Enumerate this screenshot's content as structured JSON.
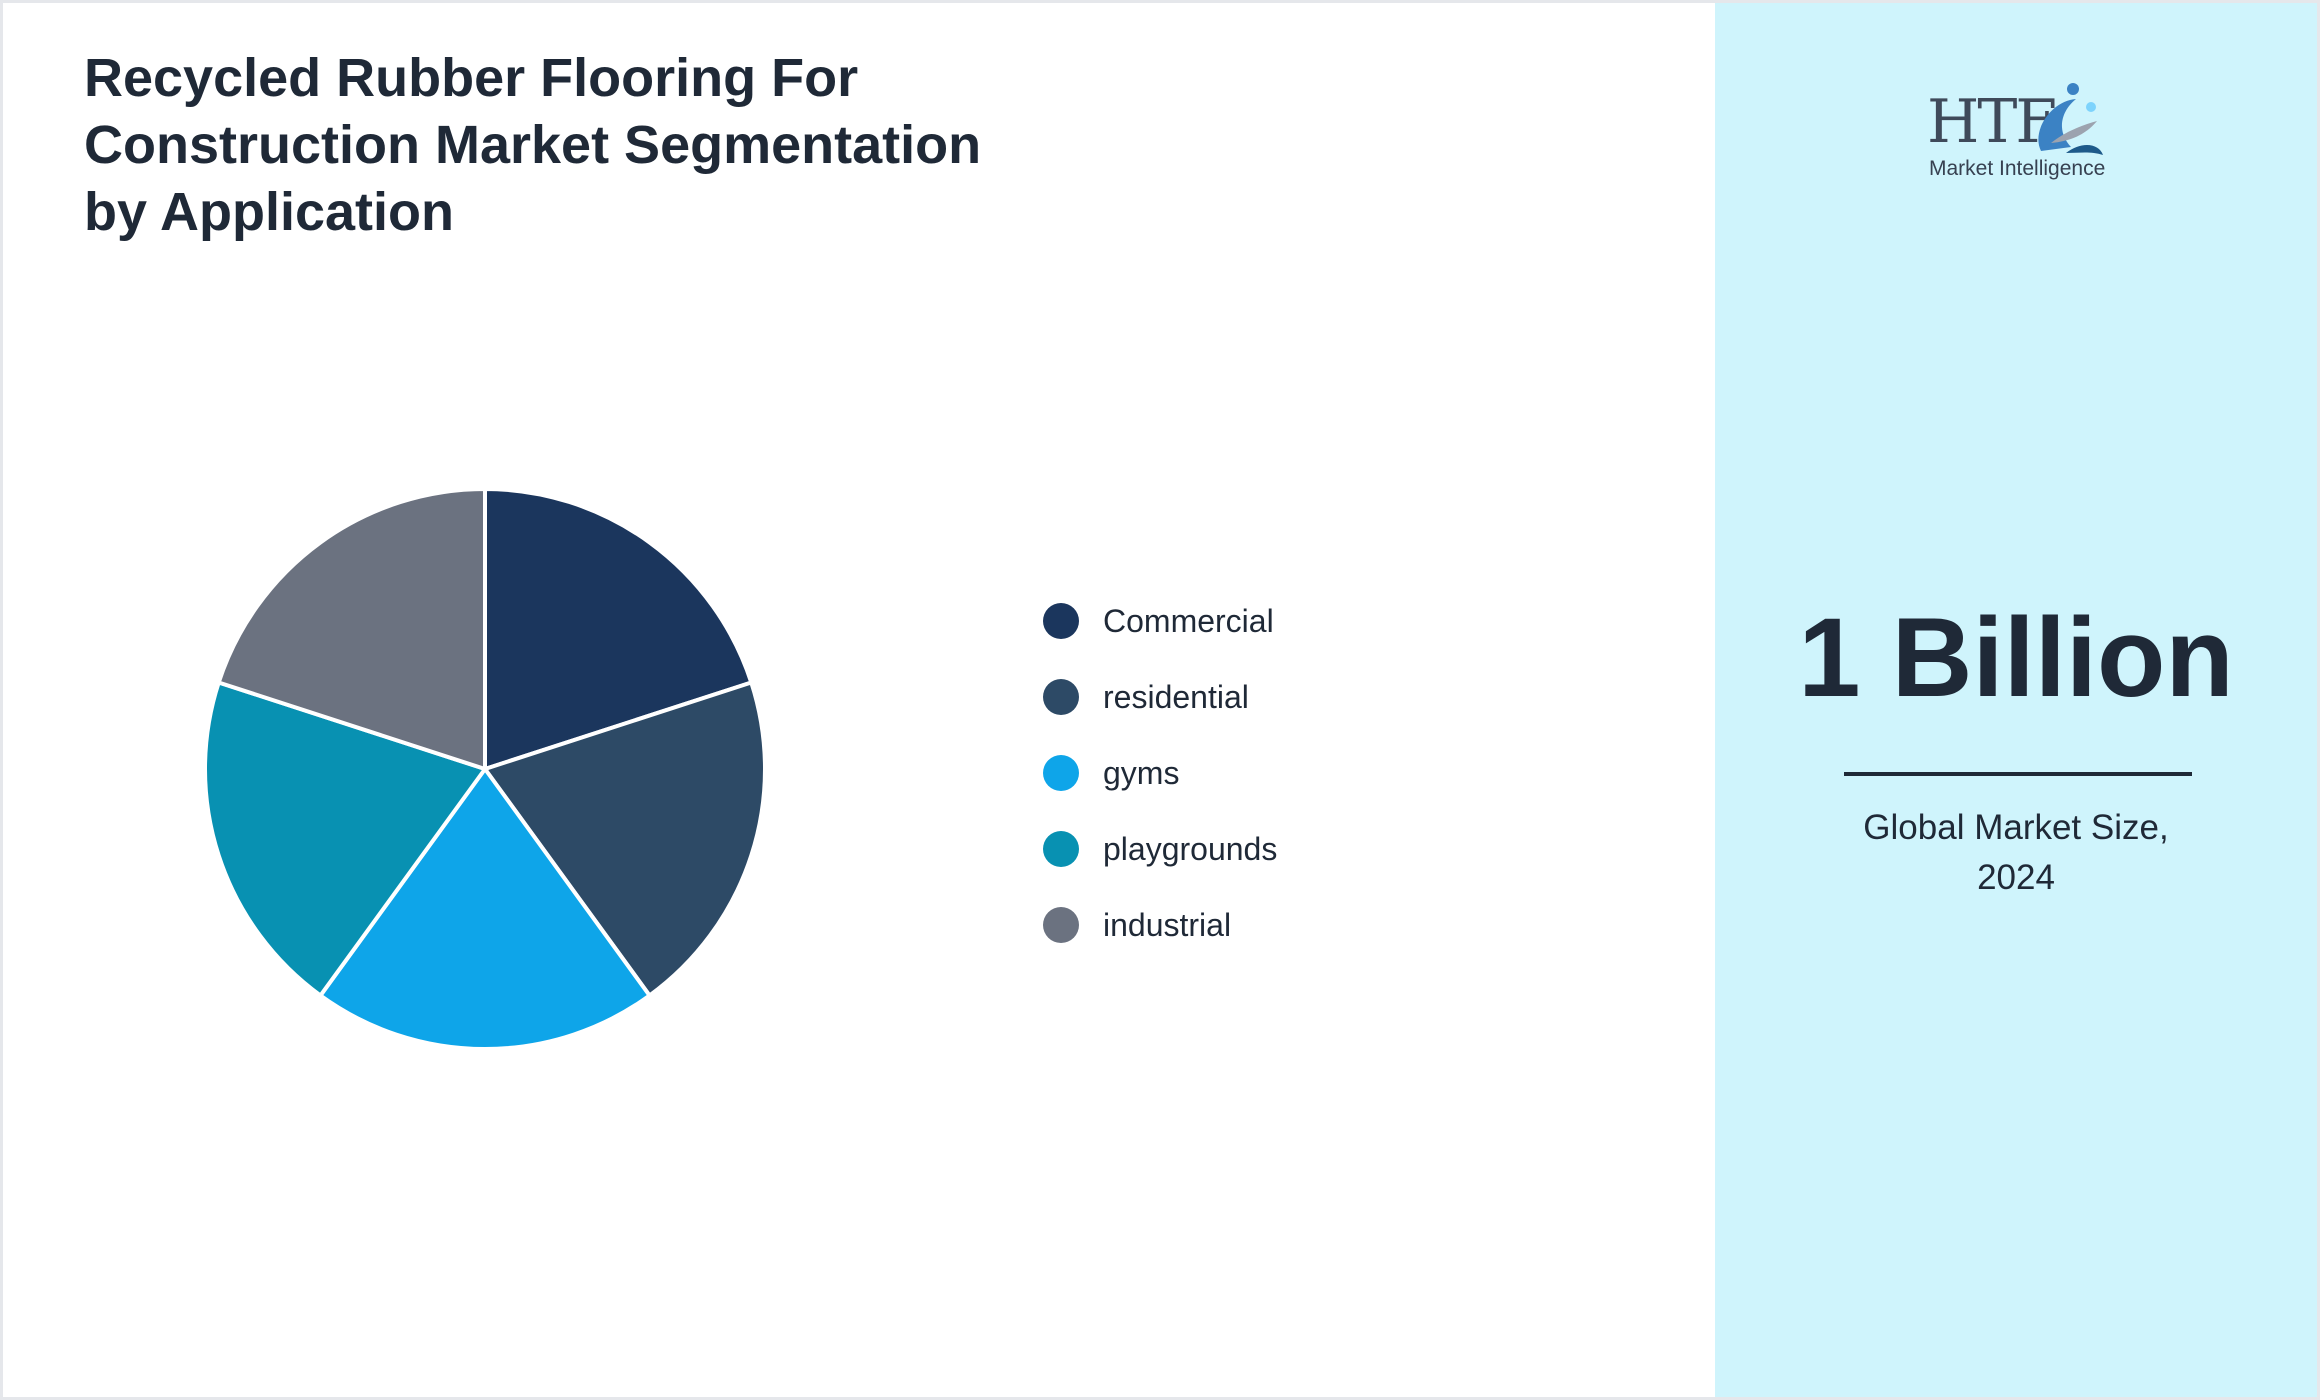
{
  "title_lines": [
    "Recycled Rubber Flooring For",
    "Construction Market Segmentation",
    "by Application"
  ],
  "chart_data": {
    "type": "pie",
    "title": "Recycled Rubber Flooring For Construction Market Segmentation by Application",
    "categories": [
      "Commercial",
      "residential",
      "gyms",
      "playgrounds",
      "industrial"
    ],
    "values": [
      20,
      20,
      20,
      20,
      20
    ],
    "colors": [
      "#1b365d",
      "#2d4a66",
      "#0ea5e9",
      "#0891b2",
      "#6b7280"
    ],
    "legend_position": "right"
  },
  "market": {
    "value": "1 Billion",
    "caption_lines": [
      "Global Market Size,",
      "2024"
    ]
  },
  "logo": {
    "brand": "HTF",
    "tagline": "Market Intelligence",
    "colors": [
      "#3f4a5a",
      "#3b82c4",
      "#7dd3fc"
    ]
  },
  "colors": {
    "side_panel": "#cff4fc",
    "text": "#1f2937"
  }
}
